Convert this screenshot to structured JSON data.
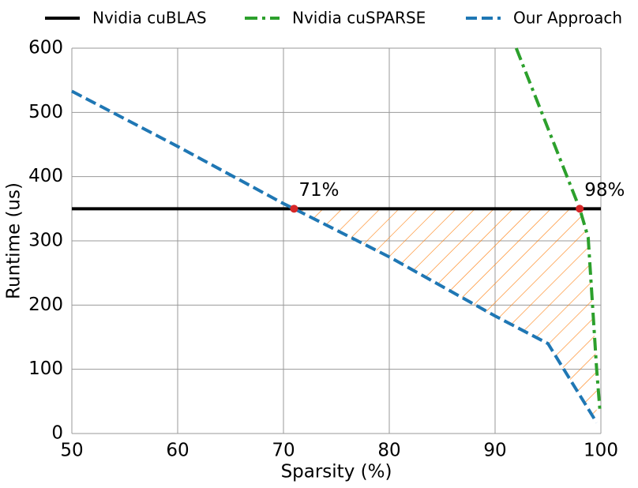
{
  "chart_data": {
    "type": "line",
    "xlabel": "Sparsity (%)",
    "ylabel": "Runtime (us)",
    "xlim": [
      50,
      100
    ],
    "ylim": [
      0,
      600
    ],
    "xticks": [
      50,
      60,
      70,
      80,
      90,
      100
    ],
    "yticks": [
      0,
      100,
      200,
      300,
      400,
      500,
      600
    ],
    "grid": true,
    "legend": "top",
    "series": [
      {
        "name": "Nvidia cuBLAS",
        "color": "#000000",
        "dash": "solid",
        "x": [
          50,
          100
        ],
        "values": [
          350,
          350
        ]
      },
      {
        "name": "Nvidia cuSPARSE",
        "color": "#2ca02c",
        "dash": "dashdot",
        "x": [
          92,
          98,
          98.8,
          99.6,
          99.9,
          100
        ],
        "values": [
          600,
          350,
          305,
          100,
          38,
          38
        ]
      },
      {
        "name": "Our Approach",
        "color": "#1f77b4",
        "dash": "dashed",
        "x": [
          50,
          60,
          70,
          71,
          80,
          90,
          95,
          99.6
        ],
        "values": [
          533,
          447,
          358,
          350,
          275,
          183,
          140,
          17
        ]
      }
    ],
    "annotations": [
      {
        "text": "71%",
        "x": 71,
        "y": 350
      },
      {
        "text": "98%",
        "x": 98,
        "y": 350
      }
    ],
    "marker_color": "#d62728",
    "hatch_color": "#ff7f0e"
  }
}
